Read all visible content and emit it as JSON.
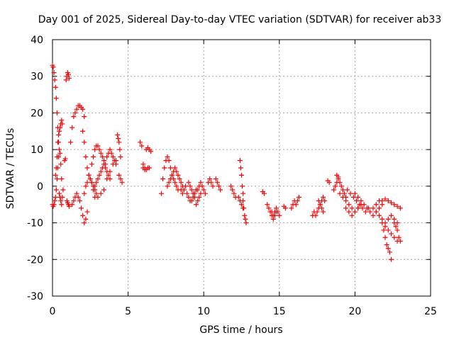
{
  "chart_data": {
    "type": "scatter",
    "title": "Day 001 of 2025, Sidereal Day-to-day VTEC variation (SDTVAR) for receiver ab33",
    "xlabel": "GPS time / hours",
    "ylabel": "SDTVAR / TECUs",
    "xlim": [
      0,
      25
    ],
    "ylim": [
      -30,
      40
    ],
    "x_ticks": [
      0,
      5,
      10,
      15,
      20,
      25
    ],
    "y_ticks": [
      -30,
      -20,
      -10,
      0,
      10,
      20,
      30,
      40
    ],
    "x_tick_labels": [
      "0",
      "5",
      "10",
      "15",
      "20",
      "25"
    ],
    "y_tick_labels": [
      "-30",
      "-20",
      "-10",
      "0",
      "10",
      "20",
      "30",
      "40"
    ],
    "grid": true,
    "marker": "plus",
    "color": "#ff0000",
    "series": [
      {
        "name": "SDTVAR",
        "segments": [
          {
            "x": [
              0.0,
              0.05,
              0.1,
              0.15,
              0.2,
              0.25,
              0.3,
              0.35,
              0.4
            ],
            "y": [
              33,
              32.5,
              31,
              29,
              27,
              24,
              20,
              16,
              12
            ]
          },
          {
            "x": [
              0.0,
              0.05,
              0.1,
              0.15,
              0.2,
              0.25,
              0.3,
              0.35,
              0.4,
              0.45,
              0.5,
              0.55,
              0.6
            ],
            "y": [
              -5,
              -5.5,
              -5,
              -4,
              -3,
              -1,
              2,
              5,
              8,
              10,
              9,
              6,
              2
            ]
          },
          {
            "x": [
              0.2,
              0.25,
              0.3,
              0.35,
              0.4,
              0.45,
              0.5,
              0.55,
              0.6,
              0.65
            ],
            "y": [
              3,
              5,
              8,
              12,
              14,
              15,
              16,
              17,
              18,
              17
            ]
          },
          {
            "x": [
              0.45,
              0.5,
              0.55,
              0.6,
              0.65,
              0.7
            ],
            "y": [
              -2,
              -3,
              -4,
              -5,
              -3,
              -1
            ]
          },
          {
            "x": [
              0.8,
              0.85
            ],
            "y": [
              7,
              7.5
            ]
          },
          {
            "x": [
              0.9,
              0.95,
              1.0,
              1.05,
              1.1
            ],
            "y": [
              29,
              30,
              31,
              30.5,
              29.5
            ]
          },
          {
            "x": [
              0.95,
              1.0,
              1.05,
              1.1
            ],
            "y": [
              -4,
              -4.5,
              -5,
              -5.5
            ]
          },
          {
            "x": [
              1.2,
              1.3,
              1.4,
              1.5,
              1.6,
              1.7,
              1.8,
              1.9,
              2.0,
              2.1
            ],
            "y": [
              12,
              16,
              19,
              20,
              21,
              22,
              22,
              21.5,
              21,
              19
            ]
          },
          {
            "x": [
              1.3,
              1.4,
              1.5,
              1.6,
              1.7,
              1.8,
              1.9,
              2.0,
              2.1,
              2.2,
              2.3
            ],
            "y": [
              -5,
              -4,
              -3,
              -2,
              -3,
              -4,
              -6,
              -8,
              -10,
              -9,
              -7
            ]
          },
          {
            "x": [
              2.1,
              2.2,
              2.3,
              2.4,
              2.5,
              2.6,
              2.7,
              2.8,
              2.9,
              3.0
            ],
            "y": [
              -2,
              0,
              1,
              3,
              2,
              1,
              0,
              -1,
              -2,
              -3
            ]
          },
          {
            "x": [
              2.0,
              2.1,
              2.2,
              2.3,
              2.4,
              2.5,
              2.6,
              2.7,
              2.8
            ],
            "y": [
              15,
              12,
              8,
              5,
              3,
              2,
              1,
              -1,
              -3
            ]
          },
          {
            "x": [
              2.6,
              2.7,
              2.8,
              2.9,
              3.0,
              3.1,
              3.2,
              3.3,
              3.4,
              3.5
            ],
            "y": [
              6,
              8,
              10,
              11,
              11,
              10,
              9,
              8,
              7,
              6
            ]
          },
          {
            "x": [
              2.8,
              2.9,
              3.0,
              3.1,
              3.2,
              3.3,
              3.4,
              3.5,
              3.6,
              3.7,
              3.8
            ],
            "y": [
              0,
              1,
              2,
              3,
              4,
              5,
              6,
              5,
              4,
              3,
              2
            ]
          },
          {
            "x": [
              3.2,
              3.4,
              3.6,
              3.8,
              4.0,
              4.2
            ],
            "y": [
              -2,
              -1,
              2,
              4,
              6,
              7
            ]
          },
          {
            "x": [
              3.6,
              3.7,
              3.8,
              3.9,
              4.0,
              4.1,
              4.2
            ],
            "y": [
              8,
              9,
              10,
              9,
              8,
              7,
              6
            ]
          },
          {
            "x": [
              4.3,
              4.35,
              4.4,
              4.45,
              4.5
            ],
            "y": [
              14,
              13,
              12,
              10,
              8
            ]
          },
          {
            "x": [
              4.4,
              4.5,
              4.6
            ],
            "y": [
              3,
              2,
              1
            ]
          },
          {
            "x": [
              5.8,
              5.9,
              6.0,
              6.1
            ],
            "y": [
              12,
              11,
              6,
              5
            ]
          },
          {
            "x": [
              6.0,
              6.1,
              6.2,
              6.3,
              6.4
            ],
            "y": [
              5,
              4.5,
              4.5,
              5,
              5
            ]
          },
          {
            "x": [
              6.2,
              6.3,
              6.4,
              6.5
            ],
            "y": [
              10,
              10.5,
              10,
              9.5
            ]
          },
          {
            "x": [
              7.2,
              7.3,
              7.4,
              7.5,
              7.6,
              7.7,
              7.8,
              7.9,
              8.0,
              8.1,
              8.2,
              8.3
            ],
            "y": [
              -2,
              2,
              5,
              7,
              8,
              7,
              5,
              3,
              2,
              1,
              0,
              -1
            ]
          },
          {
            "x": [
              7.6,
              7.7,
              7.8,
              7.9,
              8.0,
              8.1,
              8.2,
              8.3,
              8.4,
              8.5,
              8.6
            ],
            "y": [
              0,
              1,
              2,
              3,
              4,
              5,
              4,
              3,
              2,
              1,
              0
            ]
          },
          {
            "x": [
              8.5,
              8.6,
              8.7,
              8.8,
              8.9,
              9.0,
              9.1,
              9.2,
              9.3,
              9.4,
              9.5
            ],
            "y": [
              -1,
              -2,
              -1,
              0,
              -2,
              -3,
              -4,
              -4,
              -3,
              -2,
              -1
            ]
          },
          {
            "x": [
              9.0,
              9.1,
              9.2,
              9.3,
              9.4,
              9.5,
              9.6,
              9.7,
              9.8
            ],
            "y": [
              1,
              0,
              -1,
              -2,
              -3,
              -5,
              -4,
              -3,
              -2
            ]
          },
          {
            "x": [
              9.6,
              9.7,
              9.8,
              9.9,
              10.0,
              10.1
            ],
            "y": [
              -1,
              0,
              1,
              0,
              -1,
              -2
            ]
          },
          {
            "x": [
              10.3,
              10.4,
              10.5,
              10.6
            ],
            "y": [
              1,
              2,
              1,
              0
            ]
          },
          {
            "x": [
              10.8,
              10.9,
              11.0,
              11.1
            ],
            "y": [
              2,
              1,
              0,
              -1
            ]
          },
          {
            "x": [
              11.8,
              11.9,
              12.0,
              12.1
            ],
            "y": [
              0,
              -1,
              -2,
              -3
            ]
          },
          {
            "x": [
              12.4,
              12.45,
              12.5,
              12.55,
              12.6
            ],
            "y": [
              7,
              5,
              3,
              0,
              -2
            ]
          },
          {
            "x": [
              12.6,
              12.65,
              12.7,
              12.75,
              12.8
            ],
            "y": [
              -4,
              -6,
              -8,
              -9,
              -10
            ]
          },
          {
            "x": [
              12.3,
              12.4,
              12.5,
              12.6
            ],
            "y": [
              -3,
              -4,
              -5,
              -6
            ]
          },
          {
            "x": [
              13.9,
              14.0
            ],
            "y": [
              -1.5,
              -2
            ]
          },
          {
            "x": [
              14.2,
              14.3,
              14.4,
              14.5,
              14.6,
              14.7,
              14.8,
              14.9,
              15.0
            ],
            "y": [
              -5,
              -6,
              -7,
              -7,
              -8,
              -7,
              -6,
              -7,
              -8
            ]
          },
          {
            "x": [
              14.5,
              14.6,
              14.7,
              14.8
            ],
            "y": [
              -8,
              -9,
              -8,
              -7
            ]
          },
          {
            "x": [
              15.3,
              15.4
            ],
            "y": [
              -5.5,
              -6
            ]
          },
          {
            "x": [
              15.8,
              15.9,
              16.0,
              16.1,
              16.2,
              16.3
            ],
            "y": [
              -6,
              -5,
              -4,
              -5,
              -4,
              -3
            ]
          },
          {
            "x": [
              17.2,
              17.3,
              17.4,
              17.5,
              17.6,
              17.7,
              17.8,
              17.9
            ],
            "y": [
              -8,
              -7,
              -8,
              -7,
              -6,
              -5,
              -6,
              -7
            ]
          },
          {
            "x": [
              17.6,
              17.7,
              17.8,
              17.9,
              18.0
            ],
            "y": [
              -4,
              -5,
              -4,
              -3,
              -4
            ]
          },
          {
            "x": [
              18.2,
              18.3
            ],
            "y": [
              1.5,
              1
            ]
          },
          {
            "x": [
              18.6,
              18.7,
              18.8,
              18.9,
              19.0,
              19.1,
              19.2,
              19.3,
              19.4
            ],
            "y": [
              -1,
              0,
              1,
              2,
              1,
              0,
              -1,
              -2,
              -3
            ]
          },
          {
            "x": [
              18.8,
              18.9
            ],
            "y": [
              3,
              2.5
            ]
          },
          {
            "x": [
              19.0,
              19.2,
              19.4,
              19.6,
              19.8,
              20.0,
              20.2,
              20.4
            ],
            "y": [
              -2,
              -3,
              -4,
              -5,
              -6,
              -7,
              -6,
              -5
            ]
          },
          {
            "x": [
              19.5,
              19.7,
              19.9,
              20.1,
              20.3,
              20.5,
              20.7,
              20.9
            ],
            "y": [
              -1,
              -2,
              -3,
              -4,
              -5,
              -6,
              -7,
              -6
            ]
          },
          {
            "x": [
              19.4,
              19.6,
              19.8,
              20.0,
              20.2,
              20.4
            ],
            "y": [
              -6,
              -7,
              -8,
              -7,
              -6,
              -5
            ]
          },
          {
            "x": [
              20.0,
              20.2,
              20.4,
              20.6,
              20.8,
              21.0,
              21.2,
              21.4,
              21.6,
              21.8
            ],
            "y": [
              -2,
              -3,
              -4,
              -5,
              -6,
              -7,
              -8,
              -7,
              -6,
              -5
            ]
          },
          {
            "x": [
              21.4,
              21.6,
              21.8,
              22.0,
              22.2,
              22.4,
              22.6,
              22.8,
              23.0
            ],
            "y": [
              -5,
              -4,
              -4,
              -3.5,
              -4,
              -4.5,
              -5,
              -5.5,
              -6
            ]
          },
          {
            "x": [
              21.2,
              21.4,
              21.6,
              21.8,
              22.0,
              22.2,
              22.4,
              22.6,
              22.8
            ],
            "y": [
              -6,
              -7,
              -8,
              -9,
              -10,
              -9,
              -8,
              -9,
              -10
            ]
          },
          {
            "x": [
              21.8,
              21.9,
              22.0,
              22.1,
              22.2,
              22.3,
              22.4
            ],
            "y": [
              -10,
              -12,
              -14,
              -16,
              -17,
              -18,
              -20
            ]
          },
          {
            "x": [
              22.6,
              22.7,
              22.8,
              22.9,
              23.0
            ],
            "y": [
              -10,
              -11,
              -12,
              -14,
              -15
            ]
          },
          {
            "x": [
              22.0,
              22.2,
              22.4,
              22.6,
              22.8
            ],
            "y": [
              -11,
              -12,
              -13,
              -14,
              -15
            ]
          }
        ]
      }
    ]
  }
}
